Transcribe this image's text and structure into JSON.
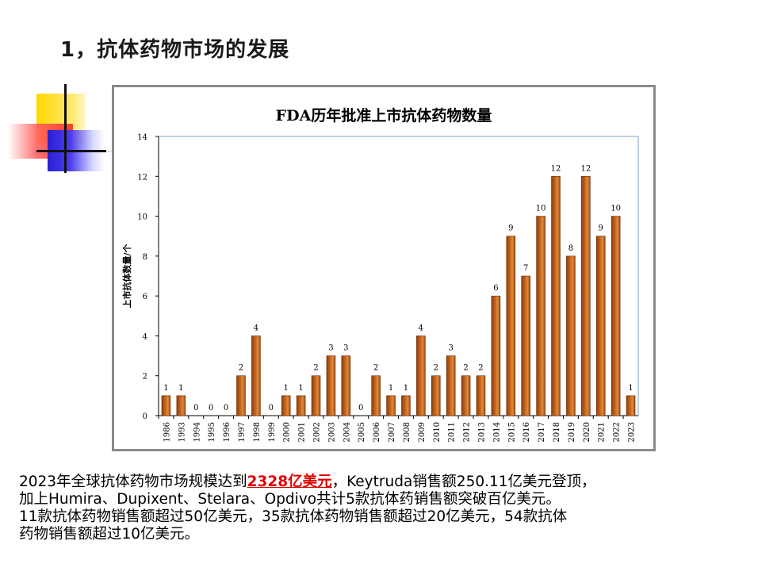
{
  "slide": {
    "title": "1，抗体药物市场的发展"
  },
  "colors": {
    "bar_fill": "#c8681f",
    "highlight": "#e00000",
    "frame_border": "#8a8a8a"
  },
  "chart_data": {
    "type": "bar",
    "title": "FDA历年批准上市抗体药物数量",
    "xlabel": "",
    "ylabel": "上市抗体数量/个",
    "ylim": [
      0,
      14
    ],
    "yticks": [
      0,
      2,
      4,
      6,
      8,
      10,
      12,
      14
    ],
    "categories": [
      "1986",
      "1993",
      "1994",
      "1995",
      "1996",
      "1997",
      "1998",
      "1999",
      "2000",
      "2001",
      "2002",
      "2003",
      "2004",
      "2005",
      "2006",
      "2007",
      "2008",
      "2009",
      "2010",
      "2011",
      "2012",
      "2013",
      "2014",
      "2015",
      "2016",
      "2017",
      "2018",
      "2019",
      "2020",
      "2021",
      "2022",
      "2023"
    ],
    "values": [
      1,
      1,
      0,
      0,
      0,
      2,
      4,
      0,
      1,
      1,
      2,
      3,
      3,
      0,
      2,
      1,
      1,
      4,
      2,
      3,
      2,
      2,
      6,
      9,
      7,
      10,
      12,
      8,
      12,
      9,
      10,
      1
    ],
    "data_labels": true,
    "grid": false,
    "legend": "none"
  },
  "text": {
    "line1_pre": "2023年全球抗体药物市场规模达到",
    "line1_highlight": "2328亿美元",
    "line1_post": "，Keytruda销售额250.11亿美元登顶，",
    "line2": "加上Humira、Dupixent、Stelara、Opdivo共计5款抗体药销售额突破百亿美元。",
    "line3": "11款抗体药物销售额超过50亿美元，35款抗体药物销售额超过20亿美元，54款抗体",
    "line4": "药物销售额超过10亿美元。"
  }
}
